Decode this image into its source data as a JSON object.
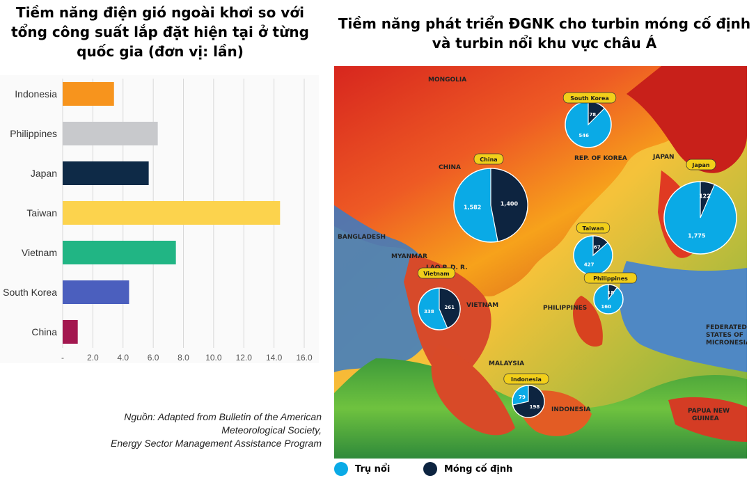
{
  "left_title": "Tiềm năng điện gió ngoài khơi so với tổng công suất lắp đặt hiện tại ở từng quốc gia (đơn vị: lần)",
  "right_title": "Tiềm năng phát triển ĐGNK cho turbin móng cố định và turbin nổi khu vực châu Á",
  "source": {
    "line1": "Nguồn: Adapted from Bulletin of the American",
    "line2": "Meteorological Society,",
    "line3": "Energy Sector Management Assistance Program"
  },
  "legend": {
    "floating": "Trụ nổi",
    "fixed": "Móng cố định"
  },
  "colors": {
    "floating": "#0aaae6",
    "fixed": "#0d2440",
    "label_badge": "#f2cf1a"
  },
  "map_labels": {
    "mongolia": "MONGOLIA",
    "china": "CHINA",
    "rep_korea": "REP. OF KOREA",
    "japan": "JAPAN",
    "bangladesh": "BANGLADESH",
    "myanmar": "MYANMAR",
    "lao": "LAO P. D. R.",
    "vietnam": "VIETNAM",
    "philippines": "PHILIPPINES",
    "malaysia": "MALAYSIA",
    "indonesia": "INDONESIA",
    "papua": "PAPUA NEW GUINEA",
    "micronesia": "FEDERATED STATES OF MICRONESIA"
  },
  "chart_data": [
    {
      "type": "bar",
      "orientation": "horizontal",
      "categories": [
        "Indonesia",
        "Philippines",
        "Japan",
        "Taiwan",
        "Vietnam",
        "South Korea",
        "China"
      ],
      "values": [
        3.4,
        6.3,
        5.7,
        14.4,
        7.5,
        4.4,
        1.0
      ],
      "colors": [
        "#f7941d",
        "#c8c9cc",
        "#0e2a47",
        "#fcd34d",
        "#21b584",
        "#4b5fbe",
        "#a3174f"
      ],
      "xticks": [
        "-",
        "2.0",
        "4.0",
        "6.0",
        "8.0",
        "10.0",
        "12.0",
        "14.0",
        "16.0"
      ],
      "xlim": [
        0,
        16
      ],
      "grid": true
    },
    {
      "type": "pie",
      "title": "",
      "pies": [
        {
          "country": "South Korea",
          "floating": 546,
          "fixed": 78
        },
        {
          "country": "China",
          "floating": 1582,
          "fixed": 1400
        },
        {
          "country": "Japan",
          "floating": 1775,
          "fixed": 122
        },
        {
          "country": "Taiwan",
          "floating": 427,
          "fixed": 67
        },
        {
          "country": "Philippines",
          "floating": 160,
          "fixed": 18
        },
        {
          "country": "Vietnam",
          "floating": 338,
          "fixed": 261
        },
        {
          "country": "Indonesia",
          "floating": 79,
          "fixed": 198
        }
      ]
    }
  ]
}
